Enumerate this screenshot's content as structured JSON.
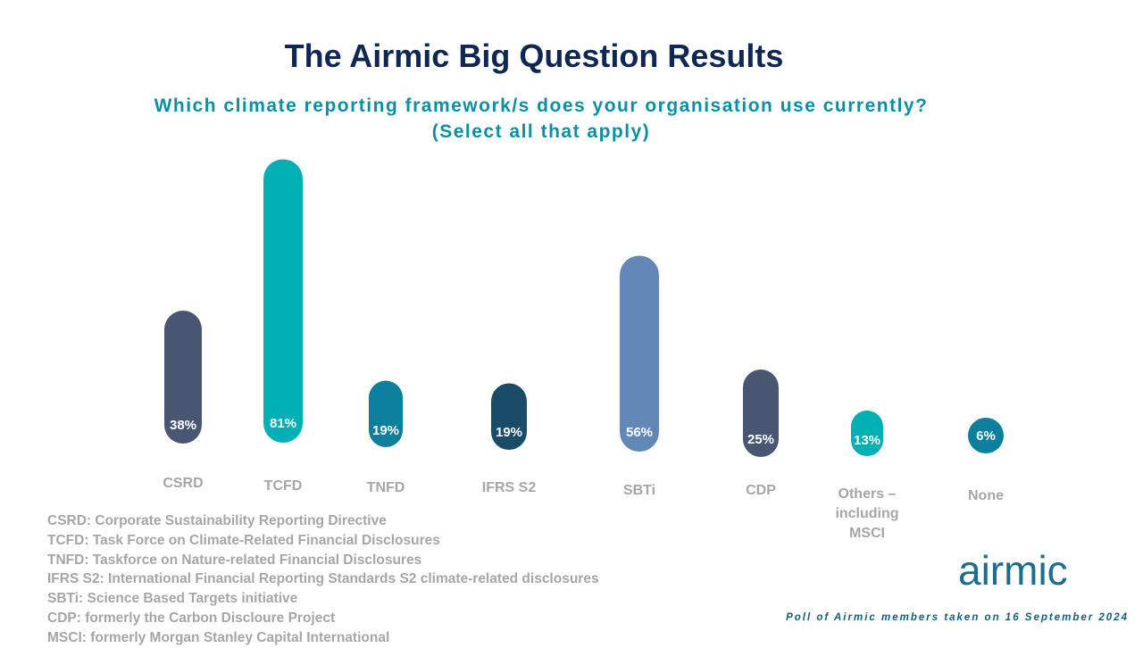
{
  "header": {
    "title": "The Airmic Big Question Results",
    "subtitle_line1": "Which climate reporting framework/s does your organisation use currently?",
    "subtitle_line2": "(Select all that apply)"
  },
  "chart_data": {
    "type": "bar",
    "title": "The Airmic Big Question Results",
    "subtitle": "Which climate reporting framework/s does your organisation use currently? (Select all that apply)",
    "categories": [
      "CSRD",
      "TCFD",
      "TNFD",
      "IFRS S2",
      "SBTi",
      "CDP",
      "Others – including MSCI",
      "None"
    ],
    "category_lines": [
      [
        "CSRD"
      ],
      [
        "TCFD"
      ],
      [
        "TNFD"
      ],
      [
        "IFRS S2"
      ],
      [
        "SBTi"
      ],
      [
        "CDP"
      ],
      [
        "Others –",
        "including",
        "MSCI"
      ],
      [
        "None"
      ]
    ],
    "values": [
      38,
      81,
      19,
      19,
      56,
      25,
      13,
      6
    ],
    "value_labels": [
      "38%",
      "81%",
      "19%",
      "19%",
      "56%",
      "25%",
      "13%",
      "6%"
    ],
    "colors": [
      "#495672",
      "#00b0b4",
      "#0b7f9c",
      "#1a4c68",
      "#6388b8",
      "#495672",
      "#00b0b4",
      "#0b7f9c"
    ],
    "unit": "%",
    "grid": false,
    "legend": "none"
  },
  "legend_notes": [
    "CSRD: Corporate Sustainability Reporting Directive",
    "TCFD: Task Force on Climate-Related Financial Disclosures",
    "TNFD: Taskforce on Nature-related Financial Disclosures",
    "IFRS S2: International Financial Reporting Standards S2 climate-related disclosures",
    "SBTi: Science Based Targets initiative",
    "CDP: formerly the Carbon Discloure Project",
    "MSCI: formerly Morgan Stanley Capital International"
  ],
  "brand": {
    "logo_text": "airmic",
    "logo_color": "#1b6e8c"
  },
  "footnote": "Poll of Airmic members taken on 16 September 2024"
}
